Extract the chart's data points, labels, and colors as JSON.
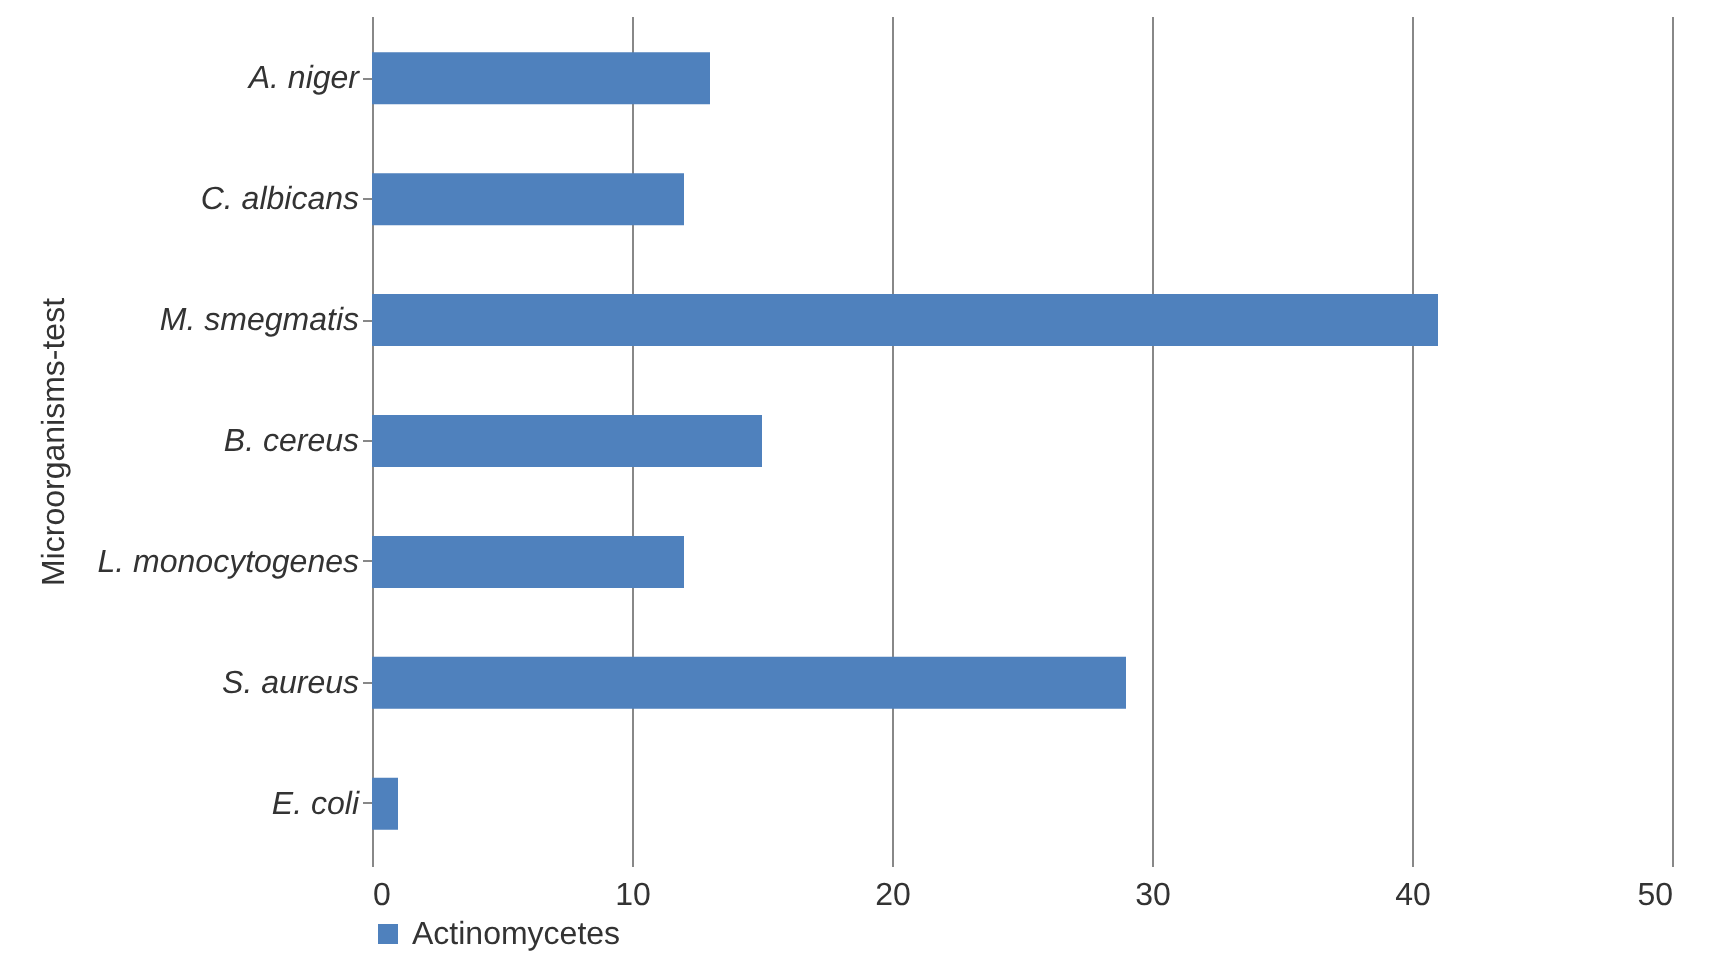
{
  "chart_data": {
    "type": "bar",
    "orientation": "horizontal",
    "ylabel": "Microorganisms-test",
    "categories": [
      "A. niger",
      "C. albicans",
      "M. smegmatis",
      "B. cereus",
      "L. monocytogenes",
      "S. aureus",
      "E. coli"
    ],
    "series": [
      {
        "name": "Actinomycetes",
        "color": "#4f81bd",
        "values": [
          13,
          12,
          41,
          15,
          12,
          29,
          1
        ]
      }
    ],
    "xlim": [
      0,
      50
    ],
    "xticks": [
      0,
      10,
      20,
      30,
      40,
      50
    ],
    "grid": "x",
    "legend": "bottom"
  }
}
